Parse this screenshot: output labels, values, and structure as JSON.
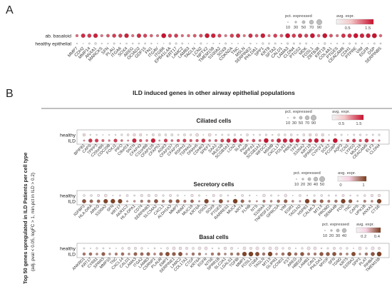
{
  "panel_a": {
    "letter": "A",
    "rows": [
      "ab. basaloid",
      "healthy epithelial"
    ],
    "genes": [
      "MMP7",
      "CDH2",
      "MMP14",
      "ANXA1",
      "MARCKS",
      "SFN",
      "PLAU",
      "ITGA6",
      "SOX4",
      "AREG",
      "OCIAD2",
      "GDF15",
      "FN1",
      "ITGAV",
      "ITGB6",
      "EPB41L4A",
      "KRT17",
      "LAMC2",
      "LAMB3",
      "TAGLN",
      "LCN2",
      "NPTX2",
      "TMEM158",
      "S100A2",
      "SOX9",
      "CDKN2A",
      "TNC",
      "MSLN",
      "SERPINE2",
      "PHLDA1",
      "SPP1",
      "KRT8",
      "SFTA2",
      "CALD1",
      "LAMA3",
      "CLDN4",
      "PTGS2",
      "MDK",
      "FOSL1",
      "ZBTB38",
      "KRT19",
      "COL4A1",
      "PTGES",
      "CEACAM6",
      "CDH1",
      "PTPRE",
      "VIM",
      "EGFR",
      "DSP",
      "SERPINB5"
    ],
    "legend_pct_title": "pct. expressed",
    "legend_pct_values": [
      "10",
      "30",
      "50",
      "70",
      "90"
    ],
    "legend_avg_title": "avg. expr.",
    "legend_avg_ticks": [
      "0.5",
      "1.5"
    ]
  },
  "panel_b": {
    "letter": "B",
    "title": "ILD induced genes in other airway epithelial populations",
    "y_axis_label": "Top 50 genes upregulated in ILD Patients per cell type",
    "y_axis_label2": "(adj. pval < 0.05, logFC > 1, min.pct in ILD > 0.2)",
    "rows": [
      "healthy",
      "ILD"
    ],
    "ciliated": {
      "title": "Ciliated cells",
      "legend_pct_title": "pct. expressed",
      "legend_pct_values": [
        "10",
        "30",
        "50",
        "70",
        "90"
      ],
      "legend_avg_title": "avg. expr.",
      "legend_avg_ticks": [
        "0.5",
        "1.5"
      ],
      "genes": [
        "BPIFB1",
        "CAPS",
        "TPPP3",
        "C20orf85",
        "CDC20B",
        "FOXJ1",
        "PIFO",
        "C9orf24",
        "SNTN",
        "CFAP43",
        "C11orf88",
        "CFAP126",
        "CFAP52",
        "AGR3",
        "CFAP157",
        "CFAP70",
        "RSPH1",
        "TSPAN1",
        "DNAH5",
        "CDHR3",
        "SPEF1",
        "SAA1",
        "MUC5B",
        "SCGB3A1",
        "LCN2",
        "SLPI",
        "PIGR",
        "BPIFA1",
        "SCGB1A1",
        "WFDC2",
        "MSMB",
        "CXCL17",
        "FOLR1",
        "PRR4",
        "TFF3",
        "S100A2",
        "KRT19",
        "SPARCL1",
        "CYP2F1",
        "SOX2",
        "FCGBP",
        "AQP3",
        "TCN1",
        "LYPD2",
        "MUC16",
        "CEACAM5",
        "ELF3",
        "CLDN4"
      ]
    },
    "secretory": {
      "title": "Secretory cells",
      "legend_pct_title": "pct. expressed",
      "legend_pct_values": [
        "10",
        "20",
        "30",
        "40",
        "50"
      ],
      "legend_avg_title": "avg. expr.",
      "legend_avg_ticks": [
        "0",
        "1"
      ],
      "genes": [
        "IGFBP2",
        "HLA-DRA",
        "AREG",
        "S100A2",
        "SFN",
        "KRT17",
        "AKR1C2",
        "HLA-DPA1",
        "CD74",
        "SERPINB3",
        "SLC34A2",
        "CXCL1",
        "ALDH1A3",
        "MMP7",
        "NNMT",
        "MUC16",
        "KRT6A",
        "DSG3",
        "SOX9",
        "PTGES",
        "RARRES1",
        "MUC4",
        "KRT4",
        "FLNB",
        "NTS",
        "S100A4",
        "TNFRSF12A",
        "GPRC5A",
        "VIM",
        "EGR1",
        "TAGLN2",
        "HSPB1",
        "CALML3",
        "MT1X",
        "PROM2",
        "SEMA4B",
        "FOS",
        "TNC",
        "CAPS",
        "UPK1B",
        "ANXA1",
        "CTSE"
      ]
    },
    "basal": {
      "title": "Basal cells",
      "legend_pct_title": "pct. expressed",
      "legend_pct_values": [
        "10",
        "20",
        "30",
        "40"
      ],
      "legend_avg_title": "avg. expr.",
      "legend_avg_ticks": [
        "0.2",
        "0.4"
      ],
      "genes": [
        "ANKRD1",
        "KRT17",
        "CYR61",
        "SPRR3",
        "MMP10",
        "TNC",
        "CXCL14",
        "CALD1",
        "LAMA3",
        "ITGA2",
        "LAMB3",
        "CSRNP1",
        "PLAUR",
        "EMP1",
        "SERPINE1",
        "LAMC2",
        "COL17A1",
        "CTGF",
        "KRT6A",
        "EGFR",
        "NT5E",
        "SPRR1B",
        "SLC2A1",
        "LGALS1",
        "TGFBI",
        "MMP1",
        "FOSL1",
        "ITGB4",
        "TAGLN",
        "MT1X",
        "GLIPR1",
        "CCND1",
        "FST",
        "AREG",
        "HBEGF",
        "LAMB1",
        "CAV1",
        "PHLDA1",
        "MYOF",
        "SFN",
        "TGM2",
        "KRT5",
        "S100A2",
        "SPP1",
        "PLAT",
        "INHBA",
        "TMEM158"
      ]
    }
  },
  "colors": {
    "red_hi": "#c8102e",
    "red_lo": "#f4c7c8",
    "grey_dot": "#d9d9d9",
    "brown_hi": "#7a3b1c",
    "pink_lo": "#f6d2e2"
  }
}
